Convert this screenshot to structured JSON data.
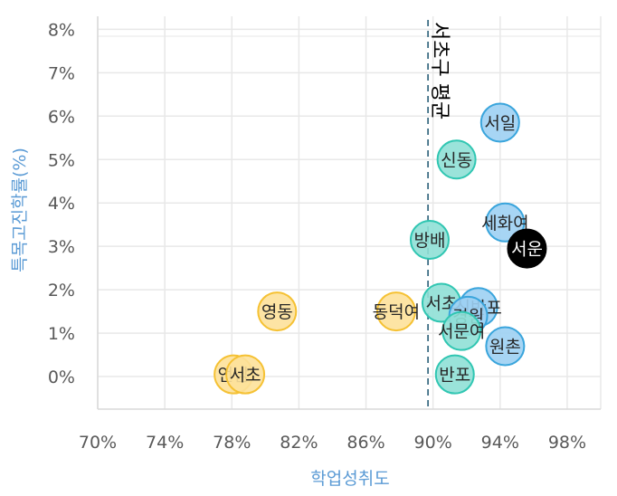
{
  "chart_data": {
    "type": "scatter",
    "title": "",
    "xlabel": "학업성취도",
    "ylabel": "특목고진학률(%)",
    "xlim": [
      70,
      100
    ],
    "ylim": [
      -0.75,
      8.3
    ],
    "x_ticks": [
      "70%",
      "74%",
      "78%",
      "82%",
      "86%",
      "90%",
      "94%",
      "98%"
    ],
    "x_tick_values": [
      70,
      74,
      78,
      82,
      86,
      90,
      94,
      98
    ],
    "y_ticks": [
      "0%",
      "1%",
      "2%",
      "3%",
      "4%",
      "5%",
      "6%",
      "7%",
      "8%"
    ],
    "y_tick_values": [
      0,
      1,
      2,
      3,
      4,
      5,
      6,
      7,
      8
    ],
    "grid": true,
    "reference_line": {
      "x": 89.7,
      "label": "서초구 평균"
    },
    "points": [
      {
        "label": "서일",
        "x": 94.0,
        "y": 5.85,
        "group": "blue"
      },
      {
        "label": "신동",
        "x": 91.4,
        "y": 5.0,
        "group": "teal"
      },
      {
        "label": "세화여",
        "x": 94.3,
        "y": 3.55,
        "group": "blue"
      },
      {
        "label": "방배",
        "x": 89.8,
        "y": 3.15,
        "group": "teal"
      },
      {
        "label": "서운",
        "x": 95.6,
        "y": 2.95,
        "group": "highlight"
      },
      {
        "label": "서초",
        "x": 90.5,
        "y": 1.7,
        "group": "teal"
      },
      {
        "label": "신반포",
        "x": 92.7,
        "y": 1.6,
        "group": "blue"
      },
      {
        "label": "경원",
        "x": 92.1,
        "y": 1.4,
        "group": "blue"
      },
      {
        "label": "서문여",
        "x": 91.7,
        "y": 1.05,
        "group": "teal"
      },
      {
        "label": "원촌",
        "x": 94.3,
        "y": 0.7,
        "group": "blue"
      },
      {
        "label": "반포",
        "x": 91.3,
        "y": 0.05,
        "group": "teal"
      },
      {
        "label": "영동",
        "x": 80.7,
        "y": 1.5,
        "group": "yellow"
      },
      {
        "label": "동덕여",
        "x": 87.8,
        "y": 1.5,
        "group": "yellow"
      },
      {
        "label": "언남",
        "x": 78.1,
        "y": 0.05,
        "group": "yellow"
      },
      {
        "label": "서초",
        "x": 78.8,
        "y": 0.05,
        "group": "yellow"
      }
    ],
    "point_label_text": {
      "서초-teal": "서초",
      "서초-yellow": "서초"
    },
    "group_colors": {
      "blue": {
        "fill": "#9dd0f3",
        "stroke": "#3aa5dc"
      },
      "teal": {
        "fill": "#8fe0d6",
        "stroke": "#30c6b2"
      },
      "yellow": {
        "fill": "#fde19a",
        "stroke": "#f5c133"
      },
      "highlight": {
        "fill": "#000000",
        "stroke": "#000000",
        "text": "#ffffff"
      }
    }
  }
}
